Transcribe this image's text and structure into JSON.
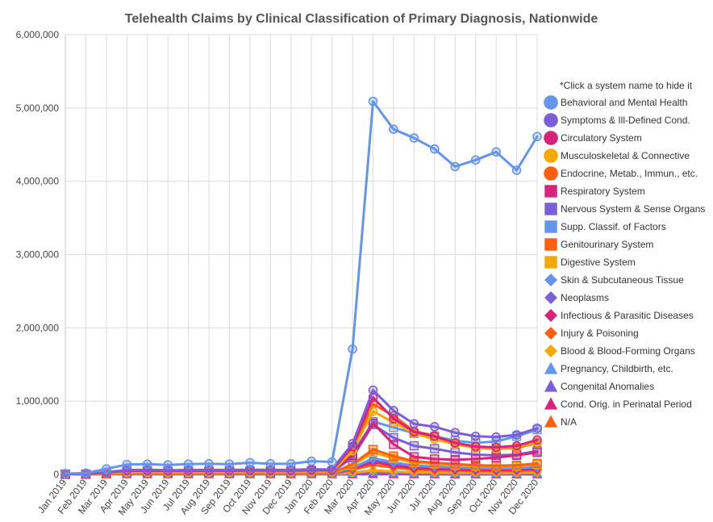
{
  "chart_data": {
    "type": "line",
    "title": "Telehealth Claims by Clinical Classification of Primary Diagnosis, Nationwide",
    "subtitle": "",
    "xlabel": "",
    "ylabel": "",
    "ylim": [
      0,
      6000000
    ],
    "y_ticks": [
      0,
      1000000,
      2000000,
      3000000,
      4000000,
      5000000,
      6000000
    ],
    "y_tick_labels": [
      "0",
      "1,000,000",
      "2,000,000",
      "3,000,000",
      "4,000,000",
      "5,000,000",
      "6,000,000"
    ],
    "grid": true,
    "legend_position": "right",
    "legend_note": "*Click a system name to hide it",
    "categories": [
      "Jan 2019",
      "Feb 2019",
      "Mar 2019",
      "Apr 2019",
      "May 2019",
      "Jun 2019",
      "Jul 2019",
      "Aug 2019",
      "Sep 2019",
      "Oct 2019",
      "Nov 2019",
      "Dec 2019",
      "Jan 2020",
      "Feb 2020",
      "Mar 2020",
      "Apr 2020",
      "May 2020",
      "Jun 2020",
      "Jul 2020",
      "Aug 2020",
      "Sep 2020",
      "Oct 2020",
      "Nov 2020",
      "Dec 2020"
    ],
    "series": [
      {
        "name": "Behavioral and Mental Health",
        "color": "#6495ED",
        "marker": "circle",
        "values": [
          12000,
          18000,
          75000,
          135000,
          140000,
          130000,
          140000,
          145000,
          140000,
          160000,
          145000,
          145000,
          180000,
          170000,
          1710000,
          5090000,
          4710000,
          4590000,
          4440000,
          4200000,
          4290000,
          4400000,
          4150000,
          4610000
        ]
      },
      {
        "name": "Symptoms & Ill-Defined Cond.",
        "color": "#7B5FD9",
        "marker": "circle",
        "values": [
          5000,
          6000,
          30000,
          60000,
          62000,
          58000,
          60000,
          62000,
          60000,
          65000,
          62000,
          62000,
          70000,
          68000,
          420000,
          1150000,
          870000,
          690000,
          650000,
          570000,
          520000,
          510000,
          540000,
          630000
        ]
      },
      {
        "name": "Circulatory System",
        "color": "#D6247B",
        "marker": "circle",
        "values": [
          4000,
          5000,
          25000,
          50000,
          50000,
          48000,
          50000,
          51000,
          50000,
          54000,
          52000,
          52000,
          58000,
          56000,
          380000,
          1050000,
          760000,
          580000,
          520000,
          430000,
          380000,
          370000,
          390000,
          470000
        ]
      },
      {
        "name": "Musculoskeletal & Connective",
        "color": "#F4A800",
        "marker": "circle",
        "values": [
          2000,
          3000,
          15000,
          30000,
          30000,
          29000,
          30000,
          31000,
          30000,
          32000,
          31000,
          31000,
          35000,
          34000,
          320000,
          860000,
          710000,
          560000,
          480000,
          410000,
          360000,
          350000,
          370000,
          440000
        ]
      },
      {
        "name": "Endocrine, Metab., Immun., etc.",
        "color": "#FF5F0F",
        "marker": "circle",
        "values": [
          2500,
          3000,
          18000,
          36000,
          36000,
          35000,
          36000,
          37000,
          36000,
          38000,
          37000,
          37000,
          41000,
          40000,
          340000,
          960000,
          800000,
          590000,
          530000,
          420000,
          360000,
          350000,
          360000,
          430000
        ]
      },
      {
        "name": "Respiratory System",
        "color": "#D6247B",
        "marker": "square",
        "values": [
          3000,
          4000,
          20000,
          40000,
          40000,
          38000,
          39000,
          40000,
          40000,
          43000,
          42000,
          44000,
          50000,
          48000,
          260000,
          700000,
          410000,
          240000,
          210000,
          200000,
          210000,
          230000,
          260000,
          300000
        ]
      },
      {
        "name": "Nervous System & Sense Organs",
        "color": "#7B5FD9",
        "marker": "square",
        "values": [
          2000,
          3000,
          14000,
          28000,
          28000,
          27000,
          28000,
          29000,
          28000,
          30000,
          29000,
          29000,
          33000,
          32000,
          230000,
          680000,
          500000,
          390000,
          350000,
          300000,
          270000,
          260000,
          270000,
          320000
        ]
      },
      {
        "name": "Supp. Classif. of Factors",
        "color": "#6495ED",
        "marker": "square",
        "values": [
          3000,
          4000,
          22000,
          45000,
          45000,
          44000,
          45000,
          46000,
          45000,
          48000,
          46000,
          46000,
          52000,
          50000,
          280000,
          720000,
          640000,
          560000,
          520000,
          460000,
          430000,
          450000,
          520000,
          610000
        ]
      },
      {
        "name": "Genitourinary System",
        "color": "#FF5F0F",
        "marker": "square",
        "values": [
          1000,
          1500,
          8000,
          16000,
          16000,
          15000,
          16000,
          16000,
          16000,
          17000,
          16000,
          16000,
          18000,
          18000,
          140000,
          340000,
          250000,
          180000,
          160000,
          140000,
          125000,
          120000,
          125000,
          150000
        ]
      },
      {
        "name": "Digestive System",
        "color": "#F4A800",
        "marker": "square",
        "values": [
          800,
          1200,
          7000,
          14000,
          14000,
          13000,
          14000,
          14000,
          14000,
          15000,
          14000,
          14000,
          16000,
          16000,
          120000,
          300000,
          220000,
          160000,
          145000,
          125000,
          112000,
          108000,
          112000,
          135000
        ]
      },
      {
        "name": "Skin & Subcutaneous Tissue",
        "color": "#6495ED",
        "marker": "diamond",
        "values": [
          600,
          900,
          5000,
          10000,
          10000,
          9500,
          10000,
          10000,
          10000,
          11000,
          10000,
          10000,
          12000,
          12000,
          90000,
          220000,
          165000,
          120000,
          108000,
          95000,
          85000,
          82000,
          85000,
          100000
        ]
      },
      {
        "name": "Neoplasms",
        "color": "#7B5FD9",
        "marker": "diamond",
        "values": [
          800,
          1100,
          6000,
          12000,
          12000,
          11500,
          12000,
          12000,
          12000,
          13000,
          12000,
          12000,
          14000,
          14000,
          95000,
          200000,
          150000,
          115000,
          105000,
          95000,
          88000,
          86000,
          90000,
          105000
        ]
      },
      {
        "name": "Infectious & Parasitic Diseases",
        "color": "#D6247B",
        "marker": "diamond",
        "values": [
          500,
          700,
          4000,
          8000,
          8000,
          7500,
          8000,
          8000,
          8000,
          8500,
          8000,
          8000,
          9500,
          9500,
          75000,
          170000,
          120000,
          85000,
          75000,
          66000,
          60000,
          58000,
          62000,
          75000
        ]
      },
      {
        "name": "Injury & Poisoning",
        "color": "#FF5F0F",
        "marker": "diamond",
        "values": [
          400,
          600,
          3500,
          7000,
          7000,
          6800,
          7000,
          7000,
          7000,
          7400,
          7000,
          7000,
          8200,
          8200,
          60000,
          130000,
          92000,
          66000,
          58000,
          51000,
          46000,
          44000,
          47000,
          57000
        ]
      },
      {
        "name": "Blood & Blood-Forming Organs",
        "color": "#F4A800",
        "marker": "diamond",
        "values": [
          200,
          300,
          1500,
          3000,
          3000,
          2900,
          3000,
          3000,
          3000,
          3200,
          3000,
          3000,
          3500,
          3500,
          25000,
          55000,
          40000,
          30000,
          27000,
          24000,
          22000,
          21000,
          22000,
          26000
        ]
      },
      {
        "name": "Pregnancy, Childbirth, etc.",
        "color": "#6495ED",
        "marker": "triangle",
        "values": [
          150,
          200,
          1000,
          2000,
          2000,
          1900,
          2000,
          2000,
          2000,
          2100,
          2000,
          2000,
          2300,
          2300,
          22000,
          48000,
          36000,
          27000,
          24000,
          21000,
          19000,
          18500,
          19500,
          23000
        ]
      },
      {
        "name": "Congenital Anomalies",
        "color": "#7B5FD9",
        "marker": "triangle",
        "values": [
          50,
          80,
          400,
          800,
          800,
          780,
          800,
          800,
          800,
          850,
          800,
          800,
          950,
          950,
          8000,
          17000,
          13000,
          9500,
          8500,
          7500,
          6800,
          6600,
          7000,
          8200
        ]
      },
      {
        "name": "Cond. Orig. in Perinatal Period",
        "color": "#D6247B",
        "marker": "triangle",
        "values": [
          20,
          30,
          150,
          300,
          300,
          290,
          300,
          300,
          300,
          320,
          300,
          300,
          350,
          350,
          3000,
          6500,
          5000,
          3600,
          3200,
          2800,
          2600,
          2500,
          2600,
          3100
        ]
      },
      {
        "name": "N/A",
        "color": "#FF5F0F",
        "marker": "triangle",
        "values": [
          10,
          15,
          80,
          160,
          160,
          155,
          160,
          160,
          160,
          170,
          160,
          160,
          190,
          190,
          1500,
          3300,
          2500,
          1800,
          1600,
          1400,
          1300,
          1250,
          1300,
          1550
        ]
      }
    ]
  }
}
